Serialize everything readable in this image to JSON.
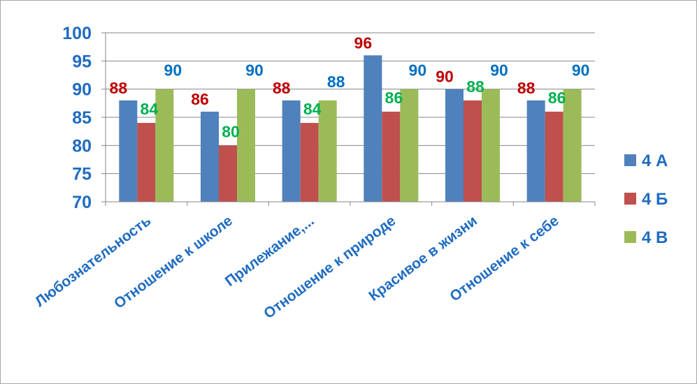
{
  "chart_data": {
    "type": "bar",
    "categories": [
      "Любознательность",
      "Отношение к школе",
      "Прилежание,...",
      "Отношение к природе",
      "Красивое в жизни",
      "Отношение к себе"
    ],
    "series": [
      {
        "name": "4 А",
        "values": [
          88,
          86,
          88,
          96,
          90,
          88
        ],
        "color": "#4f81bd",
        "label_color": "#c00000"
      },
      {
        "name": "4 Б",
        "values": [
          84,
          80,
          84,
          86,
          88,
          86
        ],
        "color": "#c0504d",
        "label_color": "#00b050"
      },
      {
        "name": "4 В",
        "values": [
          90,
          90,
          88,
          90,
          90,
          90
        ],
        "color": "#9bbb59",
        "label_color": "#0070c0"
      }
    ],
    "ylim": [
      70,
      100
    ],
    "yticks": [
      "70",
      "75",
      "80",
      "85",
      "90",
      "95",
      "100"
    ],
    "grid": true,
    "legend": "right"
  }
}
